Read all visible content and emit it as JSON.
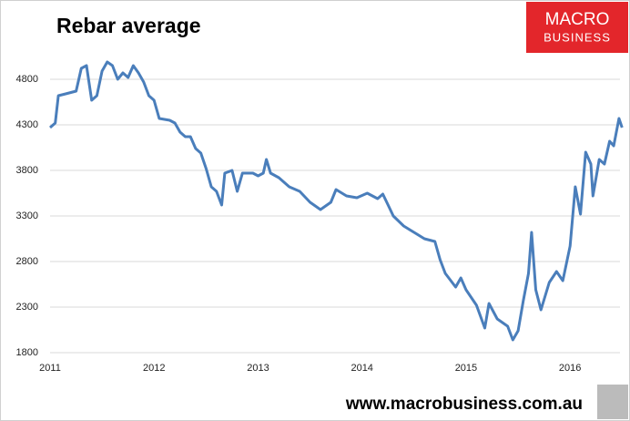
{
  "chart_data": {
    "type": "line",
    "title": "Rebar average",
    "logo": [
      "MACRO",
      "BUSINESS"
    ],
    "source": "www.macrobusiness.com.au",
    "x": [
      2011.0,
      2011.05,
      2011.08,
      2011.15,
      2011.25,
      2011.3,
      2011.35,
      2011.4,
      2011.45,
      2011.5,
      2011.55,
      2011.6,
      2011.65,
      2011.7,
      2011.75,
      2011.8,
      2011.85,
      2011.9,
      2011.95,
      2012.0,
      2012.05,
      2012.15,
      2012.2,
      2012.25,
      2012.3,
      2012.35,
      2012.4,
      2012.45,
      2012.5,
      2012.55,
      2012.6,
      2012.65,
      2012.68,
      2012.75,
      2012.8,
      2012.85,
      2012.95,
      2013.0,
      2013.05,
      2013.08,
      2013.12,
      2013.2,
      2013.3,
      2013.4,
      2013.5,
      2013.6,
      2013.7,
      2013.75,
      2013.85,
      2013.95,
      2014.05,
      2014.15,
      2014.2,
      2014.25,
      2014.3,
      2014.4,
      2014.5,
      2014.6,
      2014.7,
      2014.75,
      2014.8,
      2014.9,
      2014.95,
      2015.0,
      2015.1,
      2015.18,
      2015.22,
      2015.3,
      2015.4,
      2015.45,
      2015.5,
      2015.55,
      2015.6,
      2015.63,
      2015.67,
      2015.72,
      2015.8,
      2015.87,
      2015.93,
      2016.0,
      2016.05,
      2016.1,
      2016.15,
      2016.2,
      2016.22,
      2016.28,
      2016.33,
      2016.38,
      2016.42,
      2016.47,
      2016.5
    ],
    "series": [
      {
        "name": "Rebar average",
        "color": "#4a7ebb",
        "values": [
          4270,
          4320,
          4620,
          4640,
          4670,
          4920,
          4950,
          4570,
          4620,
          4890,
          4990,
          4950,
          4800,
          4870,
          4820,
          4950,
          4870,
          4770,
          4620,
          4570,
          4370,
          4350,
          4320,
          4220,
          4170,
          4170,
          4040,
          3990,
          3820,
          3620,
          3570,
          3420,
          3770,
          3800,
          3570,
          3770,
          3770,
          3740,
          3770,
          3920,
          3770,
          3720,
          3620,
          3570,
          3450,
          3370,
          3450,
          3590,
          3520,
          3500,
          3550,
          3490,
          3540,
          3420,
          3300,
          3190,
          3120,
          3050,
          3020,
          2820,
          2670,
          2520,
          2620,
          2490,
          2320,
          2070,
          2340,
          2170,
          2090,
          1940,
          2040,
          2370,
          2670,
          3120,
          2490,
          2270,
          2570,
          2690,
          2590,
          2970,
          3620,
          3320,
          4000,
          3870,
          3520,
          3920,
          3870,
          4120,
          4070,
          4370,
          4270
        ]
      }
    ],
    "xlim": [
      2011,
      2016.55
    ],
    "xticks": [
      2011,
      2012,
      2013,
      2014,
      2015,
      2016
    ],
    "ylim": [
      1800,
      5300
    ],
    "yticks": [
      1800,
      2300,
      2800,
      3300,
      3800,
      4300,
      4800
    ],
    "grid": true
  }
}
